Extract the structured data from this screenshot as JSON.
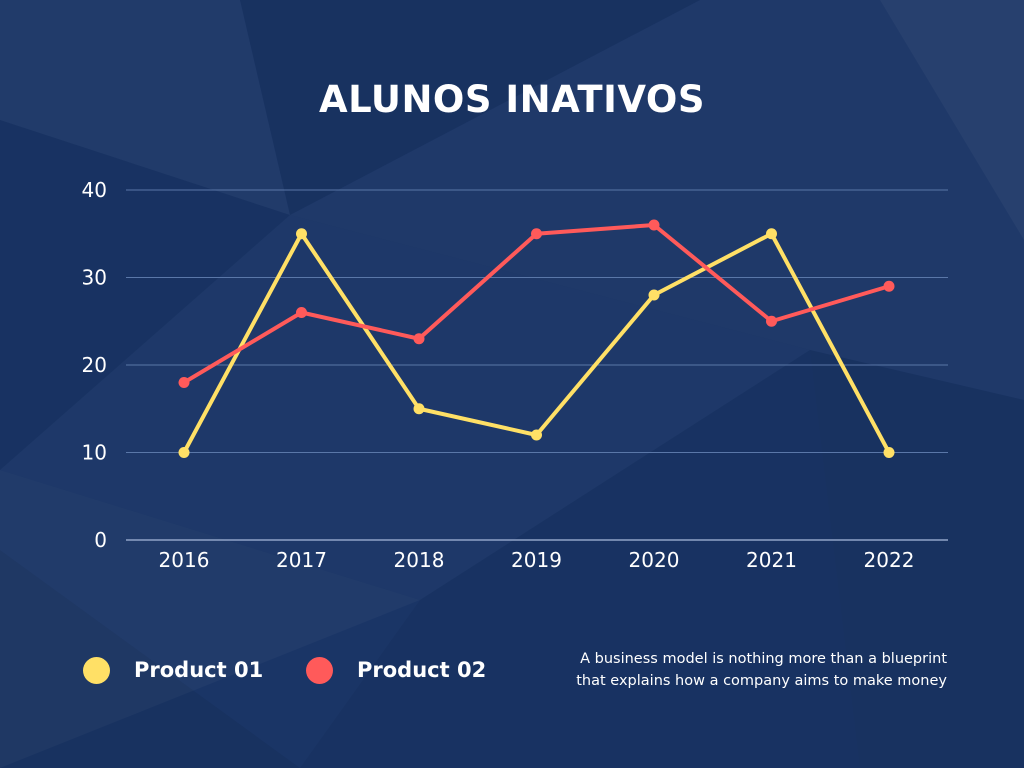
{
  "colors": {
    "background": "#1a3566",
    "series_1": "#ffe066",
    "series_2": "#ff5a5a",
    "grid": "#5a77a8"
  },
  "chart_data": {
    "type": "line",
    "title": "ALUNOS INATIVOS",
    "xlabel": "",
    "ylabel": "",
    "x": [
      "2016",
      "2017",
      "2018",
      "2019",
      "2020",
      "2021",
      "2022"
    ],
    "ylim": [
      0,
      40
    ],
    "yticks": [
      0,
      10,
      20,
      30,
      40
    ],
    "grid": true,
    "legend_position": "bottom-left",
    "series": [
      {
        "name": "Product 01",
        "color": "#ffe066",
        "values": [
          10,
          35,
          15,
          12,
          28,
          35,
          10
        ]
      },
      {
        "name": "Product 02",
        "color": "#ff5a5a",
        "values": [
          18,
          26,
          23,
          35,
          36,
          25,
          29
        ]
      }
    ]
  },
  "footnote": {
    "line1": "A business model is nothing more than a blueprint",
    "line2": "that explains how a company aims to make money"
  }
}
